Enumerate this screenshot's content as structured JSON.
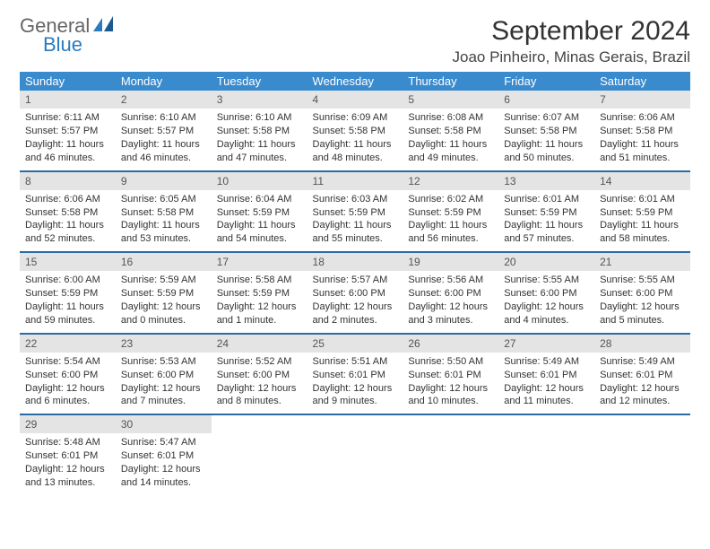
{
  "brand": {
    "word1": "General",
    "word2": "Blue"
  },
  "title": "September 2024",
  "location": "Joao Pinheiro, Minas Gerais, Brazil",
  "colors": {
    "header_bg": "#3a8bce",
    "header_text": "#ffffff",
    "row_divider": "#2b6aa3",
    "daynum_bg": "#e4e4e4",
    "text": "#333333",
    "brand_blue": "#2b7bbf"
  },
  "weekdays": [
    "Sunday",
    "Monday",
    "Tuesday",
    "Wednesday",
    "Thursday",
    "Friday",
    "Saturday"
  ],
  "weeks": [
    [
      {
        "n": "1",
        "sr": "6:11 AM",
        "ss": "5:57 PM",
        "dl": "11 hours and 46 minutes."
      },
      {
        "n": "2",
        "sr": "6:10 AM",
        "ss": "5:57 PM",
        "dl": "11 hours and 46 minutes."
      },
      {
        "n": "3",
        "sr": "6:10 AM",
        "ss": "5:58 PM",
        "dl": "11 hours and 47 minutes."
      },
      {
        "n": "4",
        "sr": "6:09 AM",
        "ss": "5:58 PM",
        "dl": "11 hours and 48 minutes."
      },
      {
        "n": "5",
        "sr": "6:08 AM",
        "ss": "5:58 PM",
        "dl": "11 hours and 49 minutes."
      },
      {
        "n": "6",
        "sr": "6:07 AM",
        "ss": "5:58 PM",
        "dl": "11 hours and 50 minutes."
      },
      {
        "n": "7",
        "sr": "6:06 AM",
        "ss": "5:58 PM",
        "dl": "11 hours and 51 minutes."
      }
    ],
    [
      {
        "n": "8",
        "sr": "6:06 AM",
        "ss": "5:58 PM",
        "dl": "11 hours and 52 minutes."
      },
      {
        "n": "9",
        "sr": "6:05 AM",
        "ss": "5:58 PM",
        "dl": "11 hours and 53 minutes."
      },
      {
        "n": "10",
        "sr": "6:04 AM",
        "ss": "5:59 PM",
        "dl": "11 hours and 54 minutes."
      },
      {
        "n": "11",
        "sr": "6:03 AM",
        "ss": "5:59 PM",
        "dl": "11 hours and 55 minutes."
      },
      {
        "n": "12",
        "sr": "6:02 AM",
        "ss": "5:59 PM",
        "dl": "11 hours and 56 minutes."
      },
      {
        "n": "13",
        "sr": "6:01 AM",
        "ss": "5:59 PM",
        "dl": "11 hours and 57 minutes."
      },
      {
        "n": "14",
        "sr": "6:01 AM",
        "ss": "5:59 PM",
        "dl": "11 hours and 58 minutes."
      }
    ],
    [
      {
        "n": "15",
        "sr": "6:00 AM",
        "ss": "5:59 PM",
        "dl": "11 hours and 59 minutes."
      },
      {
        "n": "16",
        "sr": "5:59 AM",
        "ss": "5:59 PM",
        "dl": "12 hours and 0 minutes."
      },
      {
        "n": "17",
        "sr": "5:58 AM",
        "ss": "5:59 PM",
        "dl": "12 hours and 1 minute."
      },
      {
        "n": "18",
        "sr": "5:57 AM",
        "ss": "6:00 PM",
        "dl": "12 hours and 2 minutes."
      },
      {
        "n": "19",
        "sr": "5:56 AM",
        "ss": "6:00 PM",
        "dl": "12 hours and 3 minutes."
      },
      {
        "n": "20",
        "sr": "5:55 AM",
        "ss": "6:00 PM",
        "dl": "12 hours and 4 minutes."
      },
      {
        "n": "21",
        "sr": "5:55 AM",
        "ss": "6:00 PM",
        "dl": "12 hours and 5 minutes."
      }
    ],
    [
      {
        "n": "22",
        "sr": "5:54 AM",
        "ss": "6:00 PM",
        "dl": "12 hours and 6 minutes."
      },
      {
        "n": "23",
        "sr": "5:53 AM",
        "ss": "6:00 PM",
        "dl": "12 hours and 7 minutes."
      },
      {
        "n": "24",
        "sr": "5:52 AM",
        "ss": "6:00 PM",
        "dl": "12 hours and 8 minutes."
      },
      {
        "n": "25",
        "sr": "5:51 AM",
        "ss": "6:01 PM",
        "dl": "12 hours and 9 minutes."
      },
      {
        "n": "26",
        "sr": "5:50 AM",
        "ss": "6:01 PM",
        "dl": "12 hours and 10 minutes."
      },
      {
        "n": "27",
        "sr": "5:49 AM",
        "ss": "6:01 PM",
        "dl": "12 hours and 11 minutes."
      },
      {
        "n": "28",
        "sr": "5:49 AM",
        "ss": "6:01 PM",
        "dl": "12 hours and 12 minutes."
      }
    ],
    [
      {
        "n": "29",
        "sr": "5:48 AM",
        "ss": "6:01 PM",
        "dl": "12 hours and 13 minutes."
      },
      {
        "n": "30",
        "sr": "5:47 AM",
        "ss": "6:01 PM",
        "dl": "12 hours and 14 minutes."
      },
      null,
      null,
      null,
      null,
      null
    ]
  ],
  "labels": {
    "sunrise": "Sunrise: ",
    "sunset": "Sunset: ",
    "daylight": "Daylight: "
  }
}
